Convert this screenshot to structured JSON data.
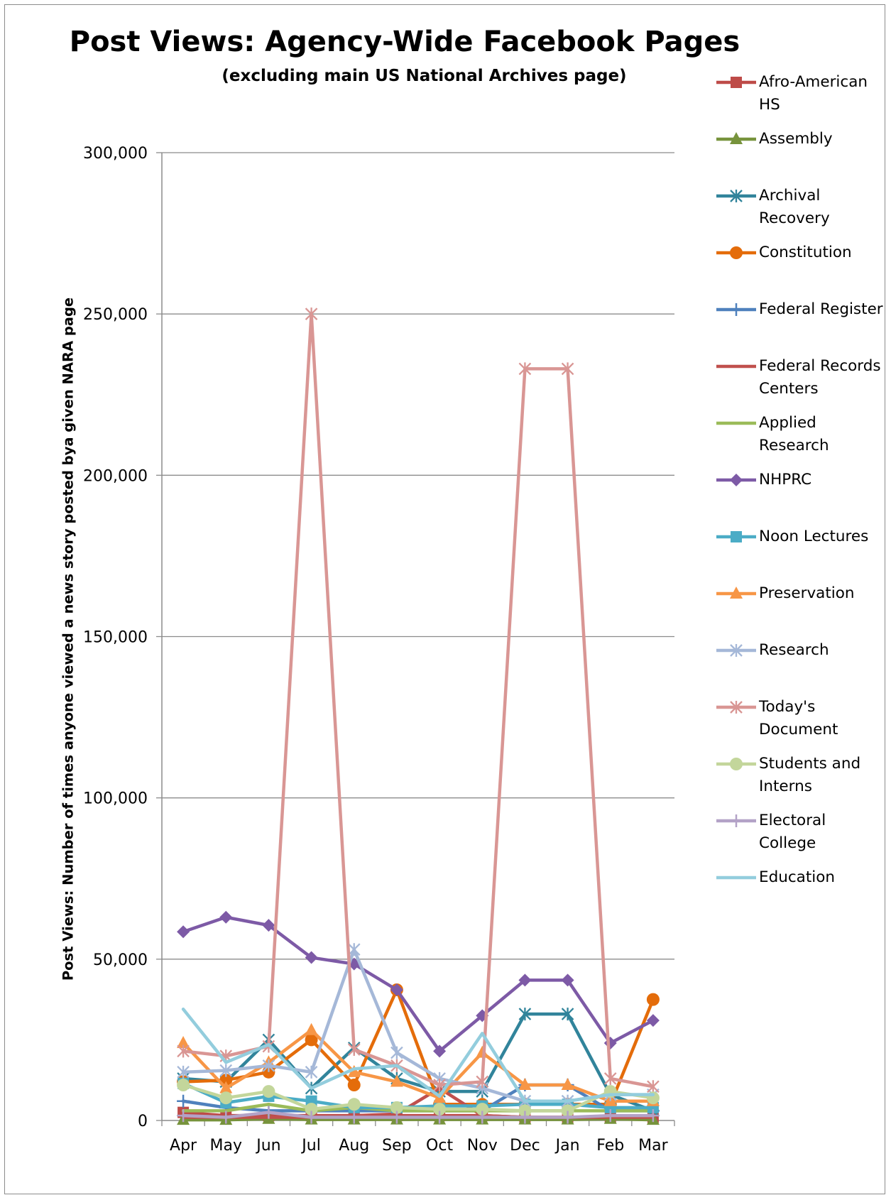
{
  "chart_data": {
    "type": "line",
    "title": "Post Views: Agency-Wide Facebook Pages",
    "subtitle": "(excluding main US National Archives page)",
    "ylabel": "Post Views: Number of times anyone viewed a news story posted bya given NARA page",
    "xlabel": "",
    "categories": [
      "Apr",
      "May",
      "Jun",
      "Jul",
      "Aug",
      "Sep",
      "Oct",
      "Nov",
      "Dec",
      "Jan",
      "Feb",
      "Mar"
    ],
    "ylim": [
      0,
      300000
    ],
    "yticks": [
      0,
      50000,
      100000,
      150000,
      200000,
      250000,
      300000
    ],
    "ytick_labels": [
      "0",
      "50,000",
      "100,000",
      "150,000",
      "200,000",
      "250,000",
      "300,000"
    ],
    "grid": true,
    "legend_position": "right",
    "series": [
      {
        "name": "Afro-American HS",
        "color": "#be4b48",
        "marker": "square",
        "values": [
          2500,
          1500,
          1500,
          1500,
          1500,
          1500,
          1500,
          1500,
          1000,
          1000,
          1000,
          1000
        ]
      },
      {
        "name": "Assembly",
        "color": "#77933c",
        "marker": "triangle",
        "values": [
          200,
          200,
          500,
          300,
          300,
          300,
          300,
          300,
          300,
          300,
          500,
          200
        ]
      },
      {
        "name": "Archival Recovery",
        "color": "#31849b",
        "marker": "star",
        "values": [
          13000,
          12000,
          25000,
          10000,
          22500,
          13000,
          9000,
          9000,
          33000,
          33000,
          8000,
          3000
        ]
      },
      {
        "name": "Constitution",
        "color": "#e46c0a",
        "marker": "circle",
        "values": [
          12000,
          12500,
          15000,
          25000,
          11000,
          40500,
          5000,
          5000,
          5000,
          5000,
          5000,
          37500
        ]
      },
      {
        "name": "Federal Register",
        "color": "#4f81bd",
        "marker": "plus",
        "values": [
          6000,
          4000,
          3000,
          3000,
          3000,
          3000,
          3000,
          3000,
          11000,
          11000,
          3000,
          3000
        ]
      },
      {
        "name": "Federal Records Centers",
        "color": "#c0504d",
        "marker": "none",
        "values": [
          1000,
          1000,
          1000,
          1000,
          1500,
          2000,
          10000,
          1500,
          1000,
          1000,
          1000,
          1000
        ]
      },
      {
        "name": "Applied Research",
        "color": "#9bbb59",
        "marker": "none",
        "values": [
          3000,
          3000,
          5000,
          3000,
          4000,
          3000,
          3000,
          3000,
          3000,
          3000,
          3000,
          3000
        ]
      },
      {
        "name": "NHPRC",
        "color": "#7d5aa6",
        "marker": "diamond",
        "values": [
          58500,
          63000,
          60500,
          50500,
          48500,
          40500,
          21500,
          32500,
          43500,
          43500,
          24000,
          31000
        ]
      },
      {
        "name": "Noon Lectures",
        "color": "#4bacc6",
        "marker": "square",
        "values": [
          11500,
          5500,
          7500,
          6000,
          4000,
          4000,
          4500,
          4500,
          5000,
          5000,
          4000,
          4000
        ]
      },
      {
        "name": "Preservation",
        "color": "#f79646",
        "marker": "triangle",
        "values": [
          24000,
          10000,
          18000,
          28000,
          15000,
          12000,
          7000,
          21000,
          11000,
          11000,
          6000,
          6000
        ]
      },
      {
        "name": "Research",
        "color": "#a5b8d8",
        "marker": "star",
        "values": [
          15000,
          15500,
          17000,
          15000,
          53000,
          21000,
          13000,
          10000,
          6000,
          6000,
          8000,
          8000
        ]
      },
      {
        "name": "Today's Document",
        "color": "#d99694",
        "marker": "star",
        "values": [
          21500,
          20000,
          23000,
          250000,
          22000,
          17000,
          11000,
          12000,
          233000,
          233000,
          13000,
          10500
        ]
      },
      {
        "name": "Students and Interns",
        "color": "#c3d69b",
        "marker": "circle",
        "values": [
          11000,
          7000,
          9000,
          3500,
          5000,
          4000,
          3500,
          3500,
          3000,
          3000,
          9000,
          7000
        ]
      },
      {
        "name": "Electoral College",
        "color": "#b3a2c7",
        "marker": "plus",
        "values": [
          1500,
          1000,
          2500,
          1000,
          1000,
          1000,
          1000,
          1000,
          1000,
          1000,
          1500,
          1500
        ]
      },
      {
        "name": "Education",
        "color": "#93cddd",
        "marker": "none",
        "values": [
          34500,
          18000,
          23500,
          10000,
          16000,
          17000,
          7500,
          27000,
          6000,
          6000,
          8000,
          8000
        ]
      }
    ]
  }
}
